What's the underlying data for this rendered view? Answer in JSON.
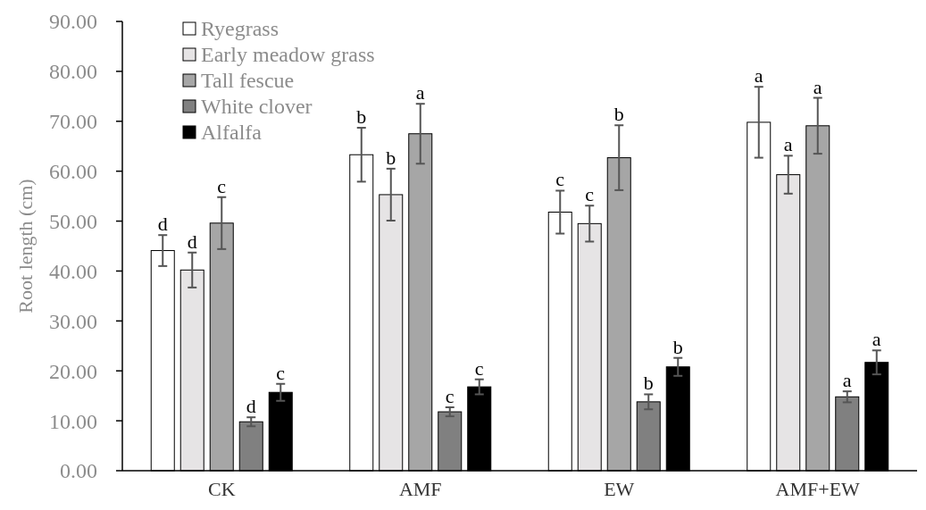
{
  "chart_data": {
    "type": "bar",
    "ylabel": "Root length (cm)",
    "categories": [
      "CK",
      "AMF",
      "EW",
      "AMF+EW"
    ],
    "series": [
      {
        "name": "Ryegrass",
        "color": "#ffffff",
        "values": [
          44.1,
          63.3,
          51.8,
          69.8
        ],
        "errors": [
          3.1,
          5.4,
          4.3,
          7.1
        ]
      },
      {
        "name": "Early meadow grass",
        "color": "#e6e4e5",
        "values": [
          40.2,
          55.3,
          49.5,
          59.3
        ],
        "errors": [
          3.5,
          5.2,
          3.6,
          3.8
        ]
      },
      {
        "name": "Tall fescue",
        "color": "#a6a6a6",
        "values": [
          49.6,
          67.5,
          62.7,
          69.1
        ],
        "errors": [
          5.2,
          6.0,
          6.5,
          5.6
        ]
      },
      {
        "name": "White clover",
        "color": "#808080",
        "values": [
          9.8,
          11.8,
          13.8,
          14.8
        ],
        "errors": [
          0.9,
          0.9,
          1.5,
          1.1
        ]
      },
      {
        "name": "Alfalfa",
        "color": "#000000",
        "values": [
          15.7,
          16.8,
          20.8,
          21.7
        ],
        "errors": [
          1.7,
          1.5,
          1.8,
          2.4
        ]
      }
    ],
    "ylim": [
      0,
      90
    ],
    "yticks": [
      {
        "value": 0,
        "label": "0.00"
      },
      {
        "value": 10,
        "label": "10.00"
      },
      {
        "value": 20,
        "label": "20.00"
      },
      {
        "value": 30,
        "label": "30.00"
      },
      {
        "value": 40,
        "label": "40.00"
      },
      {
        "value": 50,
        "label": "50.00"
      },
      {
        "value": 60,
        "label": "60.00"
      },
      {
        "value": 70,
        "label": "70.00"
      },
      {
        "value": 80,
        "label": "80.00"
      },
      {
        "value": 90,
        "label": "90.00"
      }
    ],
    "grid": false,
    "legend": "top left",
    "annotations": [
      "d",
      "d",
      "c",
      "d",
      "c",
      "b",
      "b",
      "a",
      "c",
      "c",
      "c",
      "c",
      "b",
      "b",
      "b",
      "a",
      "a",
      "a",
      "a",
      "a"
    ]
  }
}
